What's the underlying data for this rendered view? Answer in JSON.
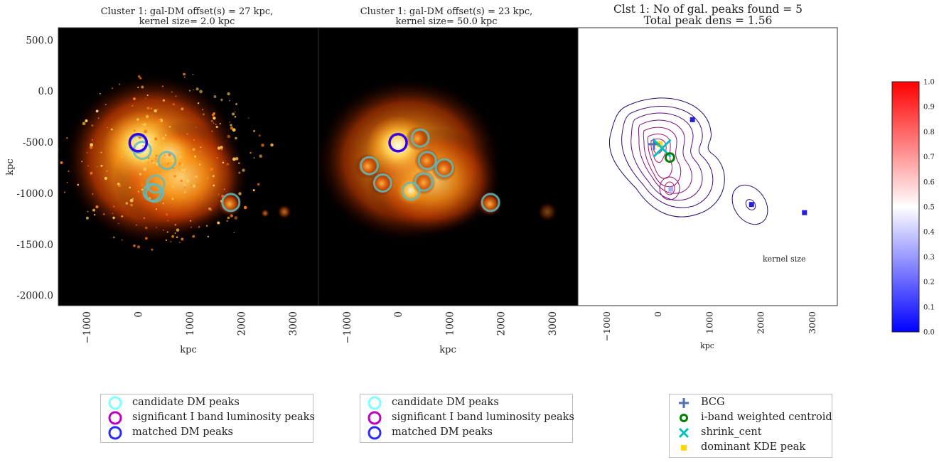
{
  "panel1": {
    "title_line1": "Cluster 1: gal-DM offset(s) = 27 kpc,",
    "title_line2": "kernel size= 2.0 kpc"
  },
  "panel2": {
    "title_line1": "Cluster 1: gal-DM offset(s) = 23 kpc,",
    "title_line2": "kernel size= 50.0 kpc"
  },
  "panel3": {
    "title_line1": "Clst 1: No of gal. peaks found = 5",
    "title_line2": "Total peak dens = 1.56",
    "annotation": "kernel size"
  },
  "colorbar": {
    "ticks": [
      "0.0",
      "0.1",
      "0.2",
      "0.3",
      "0.4",
      "0.5",
      "0.6",
      "0.7",
      "0.8",
      "0.9",
      "1.0"
    ],
    "colors": [
      "#0000ff",
      "#ffffff",
      "#ff0000"
    ]
  },
  "legend1": {
    "items": [
      {
        "label": "candidate DM peaks",
        "color": "#7fffff"
      },
      {
        "label": "significant I band luminosity peaks",
        "color": "#bf00bf"
      },
      {
        "label": "matched DM peaks",
        "color": "#2b2bff"
      }
    ]
  },
  "legend2": {
    "items": [
      {
        "label": "candidate DM peaks",
        "color": "#7fffff"
      },
      {
        "label": "significant I band luminosity peaks",
        "color": "#bf00bf"
      },
      {
        "label": "matched DM peaks",
        "color": "#2b2bff"
      }
    ]
  },
  "legend3": {
    "items": [
      {
        "label": "BCG",
        "marker": "plus",
        "color": "#4c72b0"
      },
      {
        "label": "i-band weighted centroid",
        "marker": "ring",
        "color": "#007f00"
      },
      {
        "label": "shrink_cent",
        "marker": "x",
        "color": "#00bfbf"
      },
      {
        "label": "dominant KDE peak",
        "marker": "square",
        "color": "#ffd700"
      }
    ]
  },
  "chart_data": [
    {
      "type": "scatter",
      "title": "Cluster 1: gal-DM offset(s) = 27 kpc, kernel size= 2.0 kpc",
      "xlabel": "kpc",
      "ylabel": "kpc",
      "xticks": [
        "−1000",
        "0",
        "1000",
        "2000",
        "3000"
      ],
      "yticks": [
        "500.0",
        "0.0",
        "-500.0",
        "-1000.0",
        "-1500.0",
        "-2000.0"
      ],
      "xlim": [
        -1550,
        3500
      ],
      "ylim": [
        -2100,
        620
      ],
      "series": [
        {
          "name": "candidate DM peaks",
          "points": [
            [
              0,
              -520
            ],
            [
              80,
              -580
            ],
            [
              560,
              -680
            ],
            [
              340,
              -910
            ],
            [
              270,
              -990
            ],
            [
              320,
              -1000
            ],
            [
              1800,
              -1090
            ]
          ]
        },
        {
          "name": "matched DM peaks",
          "points": [
            [
              0,
              -505
            ]
          ]
        }
      ]
    },
    {
      "type": "scatter",
      "title": "Cluster 1: gal-DM offset(s) = 23 kpc, kernel size= 50.0 kpc",
      "xlabel": "kpc",
      "xticks": [
        "−1000",
        "0",
        "1000",
        "2000",
        "3000"
      ],
      "xlim": [
        -1550,
        3500
      ],
      "ylim": [
        -2100,
        620
      ],
      "series": [
        {
          "name": "candidate DM peaks",
          "points": [
            [
              430,
              -460
            ],
            [
              -560,
              -730
            ],
            [
              570,
              -680
            ],
            [
              900,
              -750
            ],
            [
              -300,
              -900
            ],
            [
              500,
              -890
            ],
            [
              250,
              -980
            ],
            [
              1800,
              -1090
            ]
          ]
        },
        {
          "name": "matched DM peaks",
          "points": [
            [
              0,
              -505
            ]
          ]
        }
      ]
    },
    {
      "type": "contour",
      "title": "Clst 1: No of gal. peaks found = 5, Total peak dens = 1.56",
      "xlabel": "kpc",
      "xticks": [
        "−1000",
        "0",
        "1000",
        "2000",
        "3000"
      ],
      "xlim": [
        -1550,
        3500
      ],
      "ylim": [
        -2100,
        620
      ],
      "colorbar_range": [
        0,
        1
      ],
      "series": [
        {
          "name": "BCG",
          "points": [
            [
              -70,
              -520
            ]
          ]
        },
        {
          "name": "i-band weighted centroid",
          "points": [
            [
              240,
              -650
            ]
          ]
        },
        {
          "name": "shrink_cent",
          "points": [
            [
              90,
              -560
            ]
          ]
        },
        {
          "name": "dominant KDE peak",
          "points": [
            [
              40,
              -520
            ]
          ]
        },
        {
          "name": "galaxy peaks",
          "points": [
            [
              680,
              -280
            ],
            [
              260,
              -960
            ],
            [
              1830,
              -1110
            ],
            [
              2860,
              -1190
            ]
          ],
          "values": [
            0.0,
            0.35,
            0.0,
            0.0
          ]
        }
      ]
    }
  ]
}
